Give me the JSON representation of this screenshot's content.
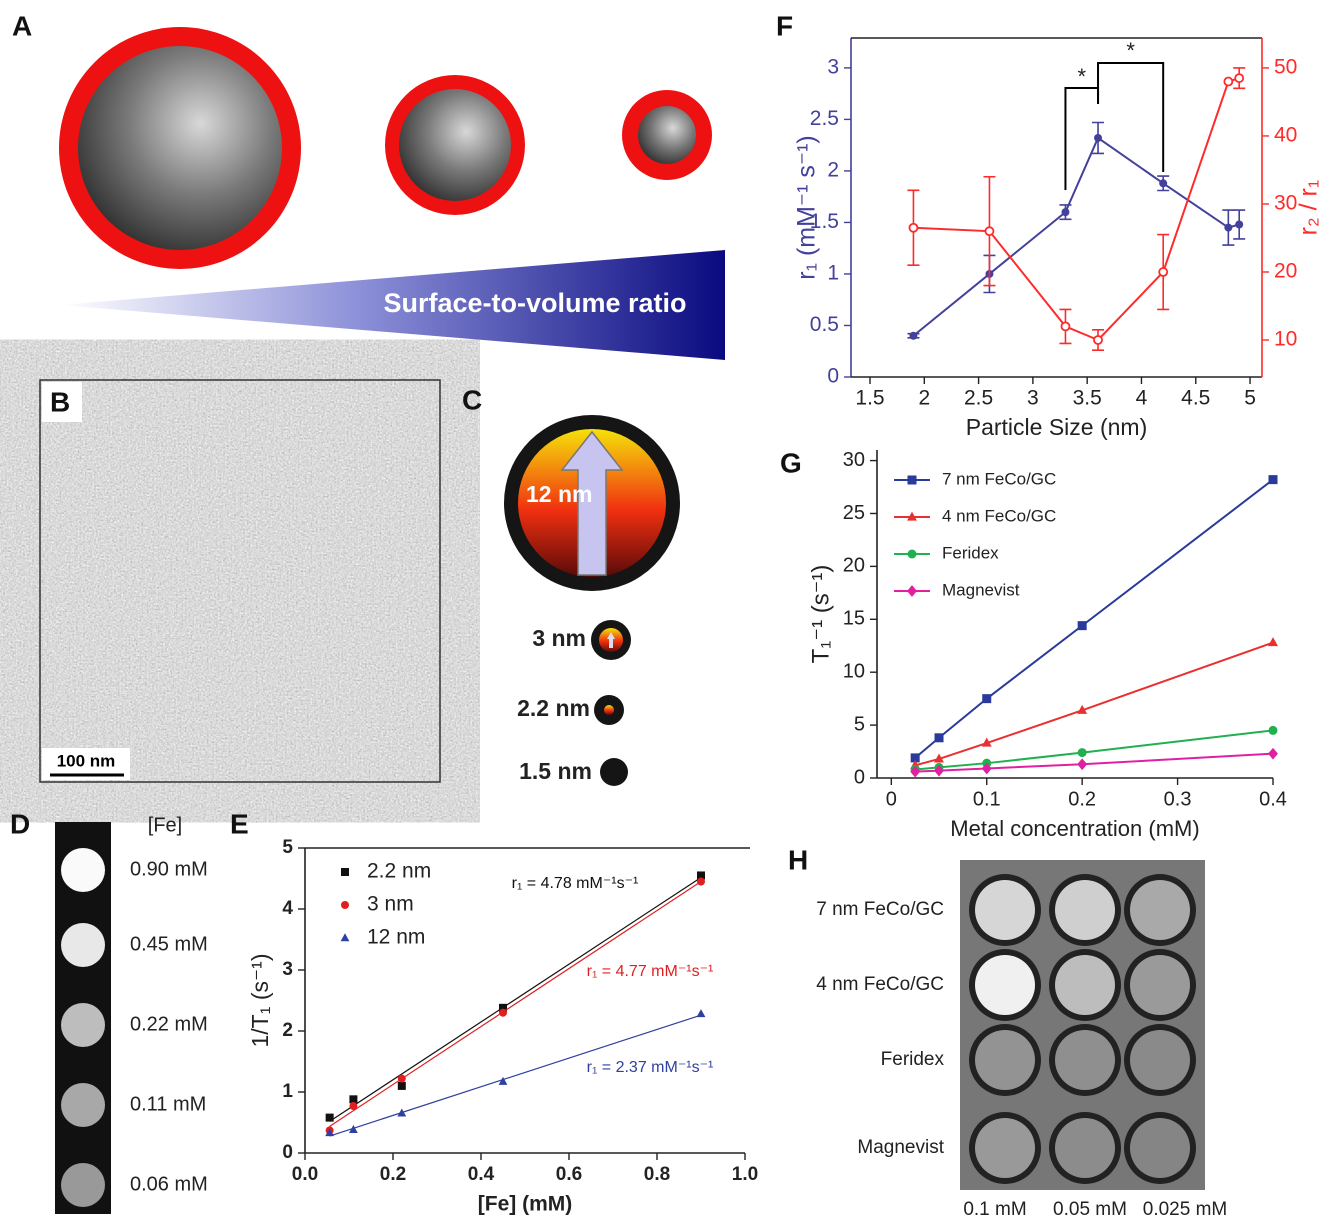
{
  "panels": {
    "A": {
      "label": "A",
      "caption": "Surface-to-volume ratio"
    },
    "B": {
      "label": "B",
      "scale_bar": "100 nm"
    },
    "C": {
      "label": "C",
      "sizes": [
        "12 nm",
        "3 nm",
        "2.2 nm",
        "1.5 nm"
      ]
    },
    "D": {
      "label": "D",
      "header": "[Fe]",
      "concentrations": [
        "0.90 mM",
        "0.45 mM",
        "0.22 mM",
        "0.11 mM",
        "0.06 mM"
      ]
    },
    "H": {
      "label": "H",
      "rows": [
        "7 nm FeCo/GC",
        "4 nm FeCo/GC",
        "Feridex",
        "Magnevist"
      ],
      "columns": [
        "0.1 mM",
        "0.05 mM",
        "0.025 mM"
      ]
    }
  },
  "chart_data": [
    {
      "type": "scatter",
      "label": "E",
      "fit": true,
      "xlabel": "[Fe] (mM)",
      "ylabel": "1/T₁ (s⁻¹)",
      "x": [
        0.056,
        0.11,
        0.22,
        0.45,
        0.9
      ],
      "series": [
        {
          "name": "2.2 nm",
          "color": "#111111",
          "marker": "square",
          "values": [
            0.58,
            0.88,
            1.1,
            2.38,
            4.55
          ],
          "annotation": "r₁ = 4.78 mM⁻¹s⁻¹"
        },
        {
          "name": "3 nm",
          "color": "#e02020",
          "marker": "circle",
          "values": [
            0.37,
            0.77,
            1.22,
            2.3,
            4.45
          ],
          "annotation": "r₁ = 4.77 mM⁻¹s⁻¹"
        },
        {
          "name": "12 nm",
          "color": "#3040a0",
          "marker": "triangle",
          "values": [
            0.33,
            0.38,
            0.65,
            1.17,
            2.28
          ],
          "annotation": "r₁ = 2.37 mM⁻¹s⁻¹"
        }
      ],
      "xlim": [
        0,
        1
      ],
      "xticks": [
        {
          "value": 0,
          "label": "0.0"
        },
        {
          "value": 0.2,
          "label": "0.2"
        },
        {
          "value": 0.4,
          "label": "0.4"
        },
        {
          "value": 0.6,
          "label": "0.6"
        },
        {
          "value": 0.8,
          "label": "0.8"
        },
        {
          "value": 1,
          "label": "1.0"
        }
      ],
      "ylim": [
        0,
        5
      ],
      "yticks": [
        0,
        1,
        2,
        3,
        4,
        5
      ],
      "legend": "top-left"
    },
    {
      "type": "line",
      "label": "F",
      "xlabel": "Particle Size (nm)",
      "ylabel": "r₁ (mM⁻¹ s⁻¹)",
      "y2label": "r₂ / r₁",
      "x": [
        1.9,
        2.6,
        3.3,
        3.6,
        4.2,
        4.8,
        4.9
      ],
      "series": [
        {
          "color": "#43419a",
          "marker": "circle",
          "values": [
            0.4,
            1.0,
            1.6,
            2.32,
            1.88,
            1.45,
            1.48
          ],
          "errors": [
            0.02,
            0.18,
            0.07,
            0.15,
            0.07,
            0.17,
            0.14
          ]
        },
        {
          "color": "#ff2a2a",
          "marker": "open-circle",
          "axis": "y2",
          "values": [
            26.5,
            26,
            12,
            10,
            20,
            48,
            48.5
          ],
          "errors": [
            5.5,
            8,
            2.5,
            1.5,
            5.5,
            null,
            1.5
          ]
        }
      ],
      "annotations": [
        "*",
        "*"
      ],
      "xlim": [
        1.325,
        5.11
      ],
      "xticks": [
        1.5,
        2,
        2.5,
        3,
        3.5,
        4,
        4.5,
        5
      ],
      "ylim": [
        0,
        3.29
      ],
      "yticks": [
        0,
        0.5,
        1,
        1.5,
        2,
        2.5,
        3
      ],
      "y2lim": [
        4.56,
        54.4
      ],
      "y2ticks": [
        10,
        20,
        30,
        40,
        50
      ]
    },
    {
      "type": "line",
      "label": "G",
      "xlabel": "Metal concentration (mM)",
      "ylabel": "T₁⁻¹ (s⁻¹)",
      "x": [
        0.025,
        0.05,
        0.1,
        0.2,
        0.4
      ],
      "series": [
        {
          "name": "7 nm FeCo/GC",
          "color": "#2a3a9a",
          "marker": "square",
          "values": [
            1.9,
            3.8,
            7.5,
            14.4,
            28.2
          ]
        },
        {
          "name": "4 nm FeCo/GC",
          "color": "#e83030",
          "marker": "triangle",
          "values": [
            1.2,
            1.8,
            3.3,
            6.4,
            12.8
          ]
        },
        {
          "name": "Feridex",
          "color": "#20b050",
          "marker": "circle",
          "values": [
            0.8,
            1.0,
            1.4,
            2.4,
            4.5
          ]
        },
        {
          "name": "Magnevist",
          "color": "#e020a0",
          "marker": "diamond",
          "values": [
            0.6,
            0.7,
            0.9,
            1.3,
            2.3
          ]
        }
      ],
      "xlim": [
        -0.015,
        0.4
      ],
      "xticks": [
        0,
        0.1,
        0.2,
        0.3,
        0.4
      ],
      "ylim": [
        0,
        31
      ],
      "yticks": [
        0,
        5,
        10,
        15,
        20,
        25,
        30
      ],
      "legend": "top-left"
    }
  ]
}
